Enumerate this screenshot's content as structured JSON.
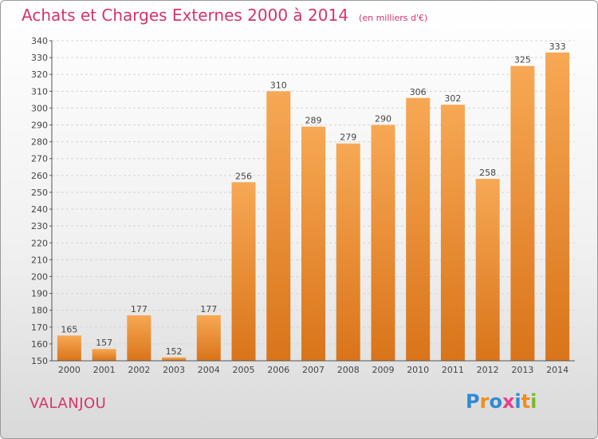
{
  "header": {
    "title": "Achats et Charges Externes 2000 à 2014",
    "subtitle": "(en milliers d'€)"
  },
  "footer": {
    "city": "VALANJOU",
    "logo_text": "Proxiti",
    "logo_colors": [
      "#2e8bd6",
      "#f28c1e",
      "#2e8bd6",
      "#e83f8c",
      "#2e8bd6",
      "#f28c1e",
      "#7ab929"
    ]
  },
  "colors": {
    "bar_light": "#f7a854",
    "bar_dark": "#d9741a",
    "text": "#444444",
    "accent": "#d6336c"
  },
  "chart_data": {
    "type": "bar",
    "title": "Achats et Charges Externes 2000 à 2014",
    "subtitle": "(en milliers d'€)",
    "categories": [
      "2000",
      "2001",
      "2002",
      "2003",
      "2004",
      "2005",
      "2006",
      "2007",
      "2008",
      "2009",
      "2010",
      "2011",
      "2012",
      "2013",
      "2014"
    ],
    "values": [
      165,
      157,
      177,
      152,
      177,
      256,
      310,
      289,
      279,
      290,
      306,
      302,
      258,
      325,
      333
    ],
    "ylim": [
      150,
      340
    ],
    "yticks": [
      150,
      160,
      170,
      180,
      190,
      200,
      210,
      220,
      230,
      240,
      250,
      260,
      270,
      280,
      290,
      300,
      310,
      320,
      330,
      340
    ],
    "grid": true
  }
}
